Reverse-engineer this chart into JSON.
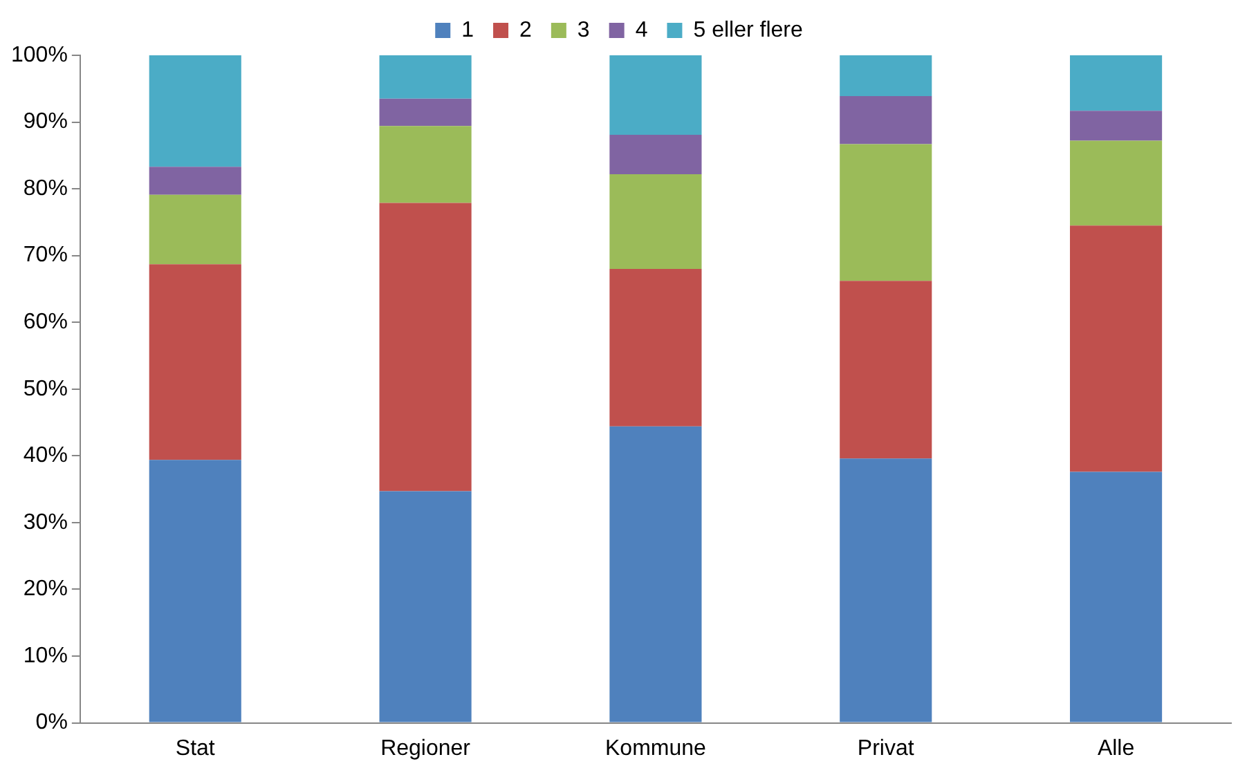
{
  "chart_data": {
    "type": "bar",
    "stacked": true,
    "legend": "top",
    "grid": false,
    "categories": [
      "Stat",
      "Regioner",
      "Kommune",
      "Privat",
      "Alle"
    ],
    "series": [
      {
        "name": "1",
        "color": "#4f81bd",
        "values": [
          39.4,
          34.7,
          44.4,
          39.6,
          37.6
        ]
      },
      {
        "name": "2",
        "color": "#c0504d",
        "values": [
          29.3,
          43.2,
          23.6,
          26.6,
          36.9
        ]
      },
      {
        "name": "3",
        "color": "#9bbb59",
        "values": [
          10.4,
          11.5,
          14.2,
          20.5,
          12.7
        ]
      },
      {
        "name": "4",
        "color": "#8064a2",
        "values": [
          4.2,
          4.1,
          5.9,
          7.2,
          4.5
        ]
      },
      {
        "name": "5 eller flere",
        "color": "#4bacc6",
        "values": [
          16.7,
          6.5,
          11.9,
          6.1,
          8.3
        ]
      }
    ],
    "ylim": [
      0,
      100
    ],
    "yticks": [
      {
        "value": 0,
        "label": "0%"
      },
      {
        "value": 10,
        "label": "10%"
      },
      {
        "value": 20,
        "label": "20%"
      },
      {
        "value": 30,
        "label": "30%"
      },
      {
        "value": 40,
        "label": "40%"
      },
      {
        "value": 50,
        "label": "50%"
      },
      {
        "value": 60,
        "label": "60%"
      },
      {
        "value": 70,
        "label": "70%"
      },
      {
        "value": 80,
        "label": "80%"
      },
      {
        "value": 90,
        "label": "90%"
      },
      {
        "value": 100,
        "label": "100%"
      }
    ]
  }
}
